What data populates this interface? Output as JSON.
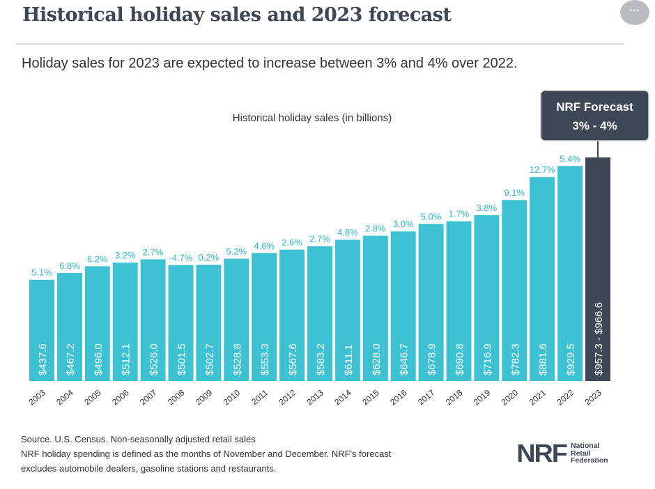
{
  "title": "Historical holiday sales and 2023 forecast",
  "subtitle": "Holiday sales for 2023 are expected to increase between 3% and 4% over 2022.",
  "more_button": "···",
  "chart_data": {
    "type": "bar",
    "title": "Historical holiday sales (in billions)",
    "categories": [
      "2003",
      "2004",
      "2005",
      "2006",
      "2007",
      "2008",
      "2009",
      "2010",
      "2011",
      "2012",
      "2013",
      "2014",
      "2015",
      "2016",
      "2017",
      "2018",
      "2019",
      "2020",
      "2021",
      "2022",
      "2023"
    ],
    "values": [
      437.6,
      467.2,
      496.0,
      512.1,
      526.0,
      501.5,
      502.7,
      528.8,
      553.3,
      567.6,
      583.2,
      611.1,
      628.0,
      646.7,
      678.9,
      690.8,
      716.9,
      782.3,
      881.6,
      929.5,
      966.6
    ],
    "value_labels": [
      "$437.6",
      "$467.2",
      "$496.0",
      "$512.1",
      "$526.0",
      "$501.5",
      "$502.7",
      "$528.8",
      "$553.3",
      "$567.6",
      "$583.2",
      "$611.1",
      "$628.0",
      "$646.7",
      "$678.9",
      "$690.8",
      "$716.9",
      "$782.3",
      "$881.6",
      "$929.5",
      "$957.3 - $966.6"
    ],
    "growth_labels": [
      "5.1%",
      "6.8%",
      "6.2%",
      "3.2%",
      "2.7%",
      "-4.7%",
      "0.2%",
      "5.2%",
      "4.6%",
      "2.6%",
      "2.7%",
      "4.8%",
      "2.8%",
      "3.0%",
      "5.0%",
      "1.7%",
      "3.8%",
      "9.1%",
      "12.7%",
      "5.4%",
      ""
    ],
    "forecast": {
      "category": "2023",
      "range": [
        957.3,
        966.6
      ],
      "callout_title": "NRF Forecast",
      "callout_value": "3% - 4%"
    },
    "colors": {
      "bar": "#3ec1d3",
      "forecast_bar": "#3d4755",
      "growth_label": "#2fb6c8",
      "callout_bg": "#3d4755",
      "axis_text": "#333333"
    }
  },
  "footnote": {
    "line1": "Source. U.S. Census. Non-seasonally adjusted retail sales",
    "line2": "NRF holiday spending is defined as the months of November and December. NRF's forecast",
    "line3": "excludes automobile dealers, gasoline stations and restaurants."
  },
  "logo": {
    "mark": "NRF",
    "line1": "National",
    "line2": "Retail",
    "line3": "Federation"
  }
}
